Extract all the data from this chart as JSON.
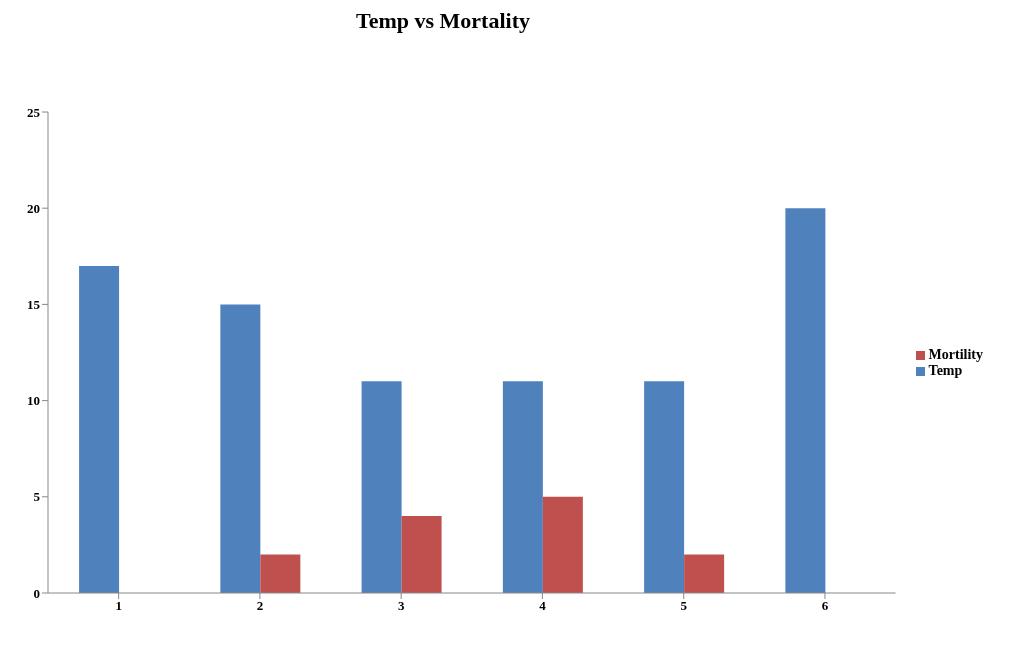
{
  "chart_data": {
    "type": "bar",
    "title": "Temp vs Mortality",
    "categories": [
      "1",
      "2",
      "3",
      "4",
      "5",
      "6"
    ],
    "series": [
      {
        "name": "Temp",
        "color": "#4f81bd",
        "values": [
          17,
          15,
          11,
          11,
          11,
          20
        ]
      },
      {
        "name": "Mortility",
        "color": "#c0504d",
        "values": [
          0,
          2,
          4,
          5,
          2,
          0
        ]
      }
    ],
    "ylim": [
      0,
      25
    ],
    "yticks": [
      0,
      5,
      10,
      15,
      20,
      25
    ],
    "grid": false,
    "legend": "right"
  }
}
